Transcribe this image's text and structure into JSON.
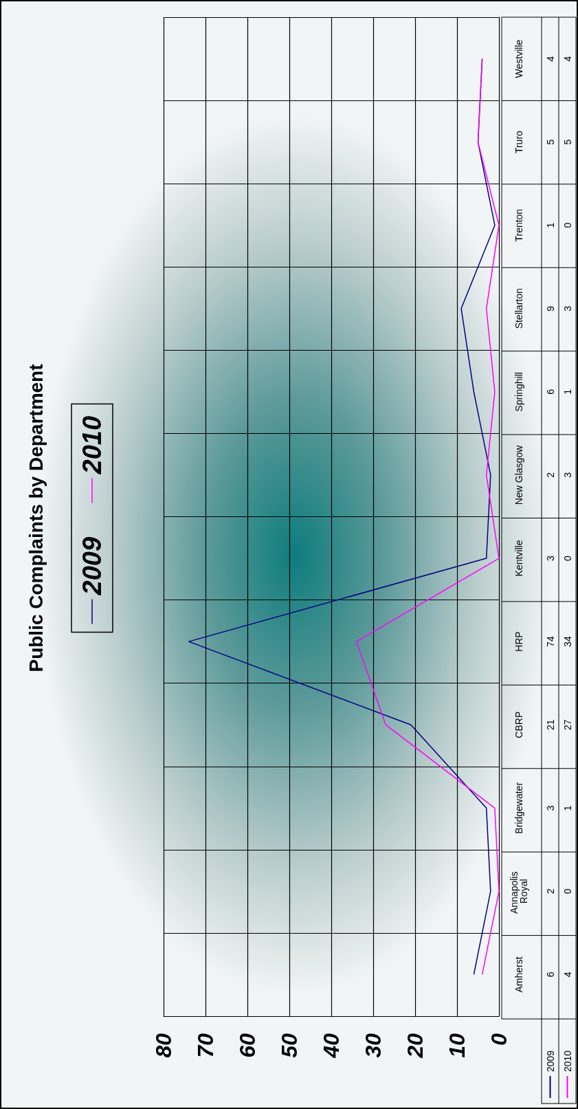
{
  "chart_data": {
    "type": "line",
    "title": "Public Complaints by Department",
    "orientation": "horizontal",
    "categories": [
      "Westville",
      "Truro",
      "Trenton",
      "Stellarton",
      "Springhill",
      "New Glasgow",
      "Kentville",
      "HRP",
      "CBRP",
      "Bridgewater",
      "Annapolis Royal",
      "Amherst"
    ],
    "series": [
      {
        "name": "2009",
        "color": "#000080",
        "values": [
          4,
          5,
          1,
          9,
          6,
          2,
          3,
          74,
          21,
          3,
          2,
          6
        ]
      },
      {
        "name": "2010",
        "color": "#ff00ff",
        "values": [
          4,
          5,
          0,
          3,
          1,
          3,
          0,
          34,
          27,
          1,
          0,
          4
        ]
      }
    ],
    "xlim": [
      80,
      0
    ],
    "xticks": [
      80,
      70,
      60,
      50,
      40,
      30,
      20,
      10,
      0
    ],
    "grid": true,
    "legend": "left",
    "data_labels": true,
    "marker": "none"
  }
}
